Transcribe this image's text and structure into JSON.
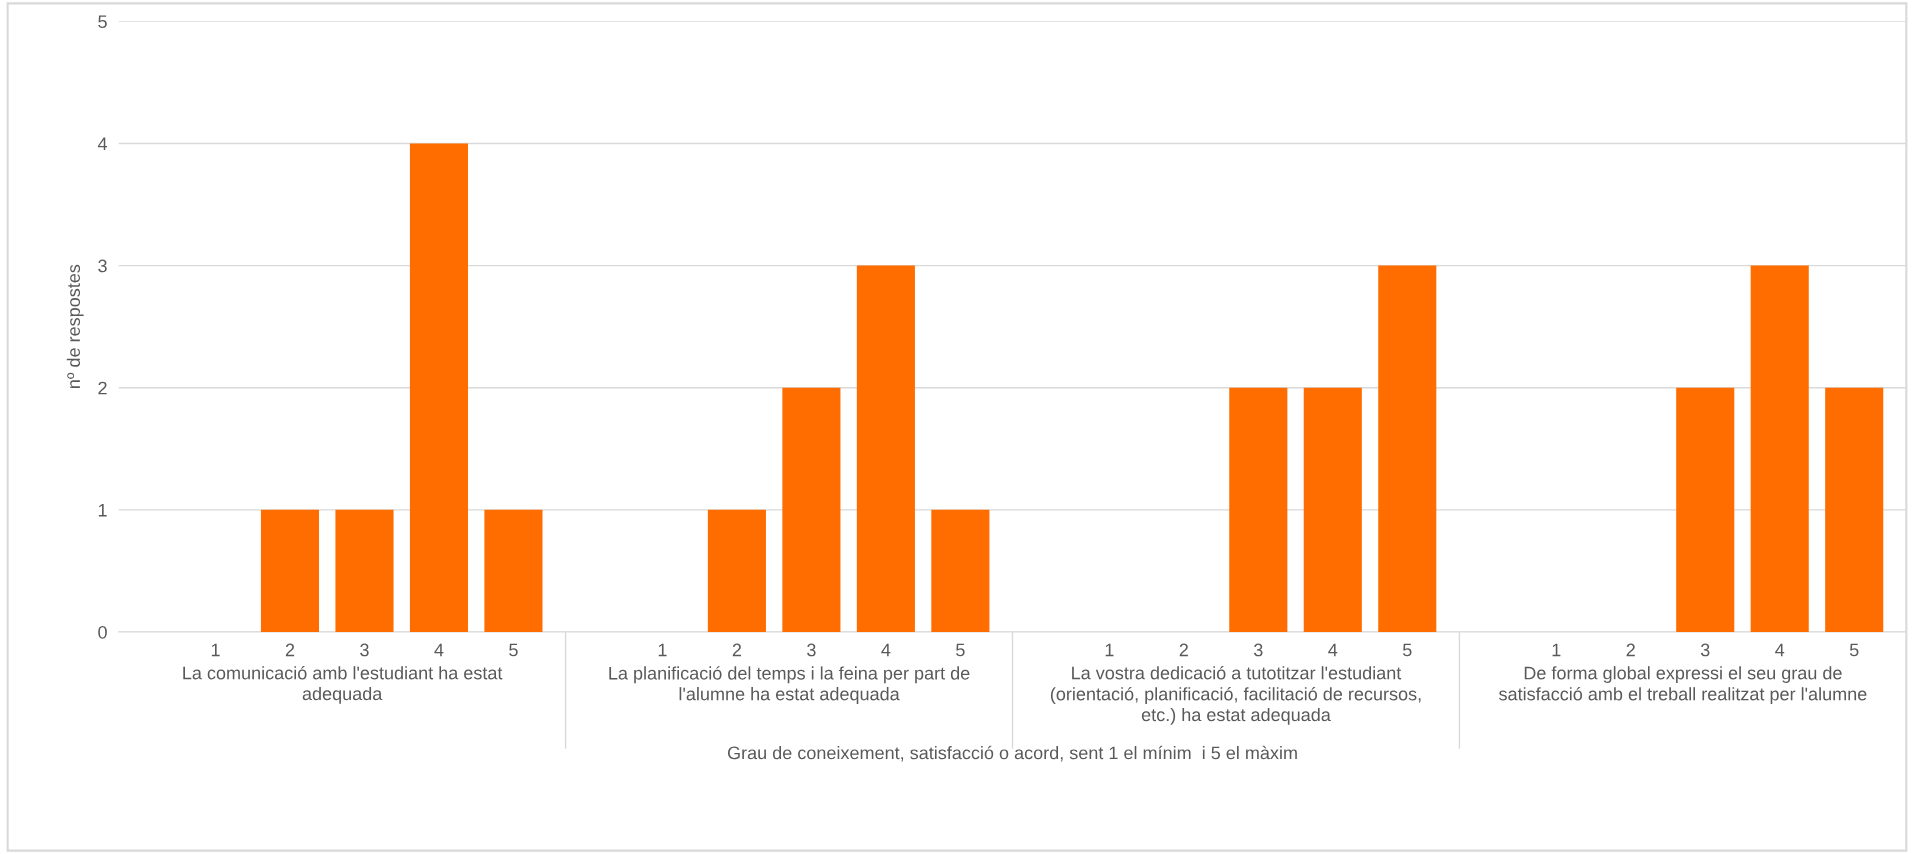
{
  "chart_data": {
    "type": "bar",
    "xlabel": "Grau de coneixement, satisfacció o acord, sent 1 el mínim  i 5 el màxim",
    "ylabel": "nº de respostes",
    "categories": [
      null,
      "1",
      "2",
      "3",
      "4",
      "5",
      null,
      "1",
      "2",
      "3",
      "4",
      "5",
      null,
      "1",
      "2",
      "3",
      "4",
      "5",
      null,
      "1",
      "2",
      "3",
      "4",
      "5"
    ],
    "values": [
      null,
      0,
      1,
      1,
      4,
      1,
      null,
      0,
      1,
      2,
      3,
      1,
      null,
      0,
      0,
      2,
      2,
      3,
      null,
      0,
      0,
      2,
      3,
      2
    ],
    "color": "#ff6d00",
    "ylim": [
      0,
      5
    ],
    "yticks": [
      0,
      1,
      2,
      3,
      4,
      5
    ],
    "grid": "y",
    "annotations": [
      "La comunicació amb l'estudiant ha estat\nadequada",
      "La planificació del temps i la feina per part de\nl'alumne ha estat adequada",
      "La vostra dedicació a tutotitzar l'estudiant\n(orientació, planificació, facilitació de recursos,\netc.) ha estat adequada",
      "De forma global expressi el seu grau de\nsatisfacció amb el treball realitzat per l'alumne"
    ]
  }
}
